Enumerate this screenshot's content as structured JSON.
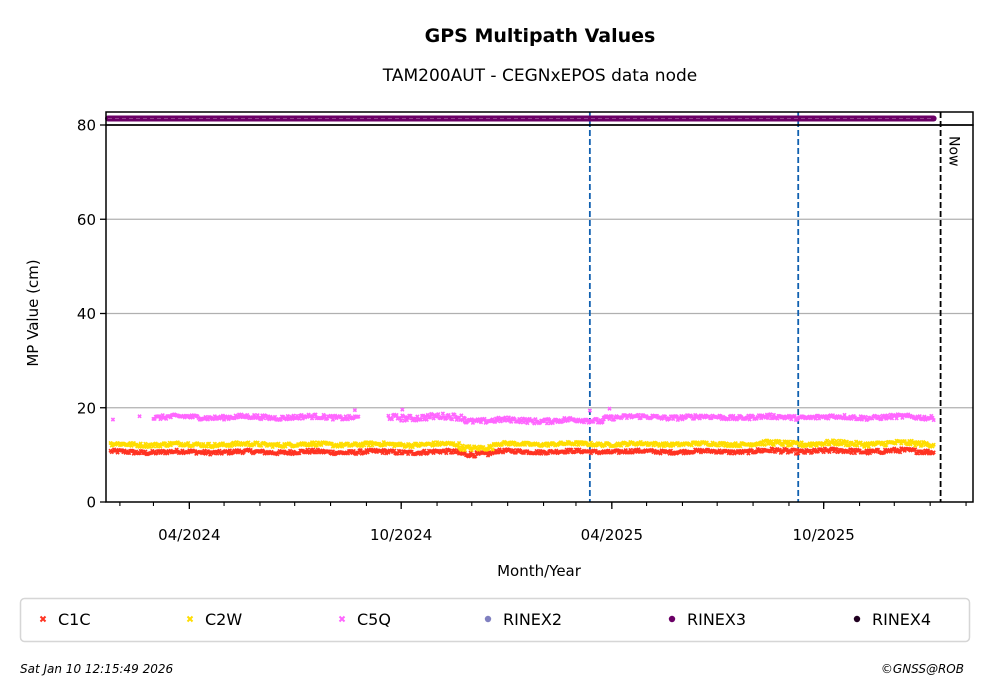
{
  "chart_data": {
    "type": "scatter",
    "title": "GPS Multipath Values",
    "subtitle": "TAM200AUT - CEGNxEPOS data node",
    "xlabel": "Month/Year",
    "ylabel": "MP Value (cm)",
    "ylim": [
      0,
      80
    ],
    "xlim": [
      "2024-01-20",
      "2026-02-07"
    ],
    "yticks": [
      "0",
      "20",
      "40",
      "60",
      "80"
    ],
    "xticks": [
      {
        "date": "2024-04-01",
        "label": "04/2024"
      },
      {
        "date": "2024-10-01",
        "label": "10/2024"
      },
      {
        "date": "2025-04-01",
        "label": "04/2025"
      },
      {
        "date": "2025-10-01",
        "label": "10/2025"
      }
    ],
    "grid": "y",
    "legend_position": "bottom",
    "now_label": "Now",
    "now_date": "2026-01-10",
    "event_lines": [
      "2025-03-13",
      "2025-09-09"
    ],
    "series": [
      {
        "name": "C1C",
        "color": "#ff3322",
        "marker": "x",
        "segments": [
          {
            "start": "2024-01-24",
            "end": "2024-11-20",
            "level": 10.6,
            "jitter": 0.4
          },
          {
            "start": "2024-11-20",
            "end": "2024-12-20",
            "level": 10.3,
            "jitter": 0.5
          },
          {
            "start": "2024-12-20",
            "end": "2025-08-01",
            "level": 10.7,
            "jitter": 0.35
          },
          {
            "start": "2025-08-01",
            "end": "2026-01-04",
            "level": 10.8,
            "jitter": 0.45
          }
        ]
      },
      {
        "name": "C2W",
        "color": "#ffdd00",
        "marker": "x",
        "segments": [
          {
            "start": "2024-01-24",
            "end": "2024-11-20",
            "level": 12.2,
            "jitter": 0.4
          },
          {
            "start": "2024-11-20",
            "end": "2024-12-20",
            "level": 11.6,
            "jitter": 0.5
          },
          {
            "start": "2024-12-20",
            "end": "2025-08-01",
            "level": 12.3,
            "jitter": 0.35
          },
          {
            "start": "2025-08-01",
            "end": "2026-01-04",
            "level": 12.4,
            "jitter": 0.5
          }
        ]
      },
      {
        "name": "C5Q",
        "color": "#ff66ff",
        "marker": "x",
        "segments": [
          {
            "start": "2024-03-01",
            "end": "2024-08-25",
            "level": 18.0,
            "jitter": 0.45
          },
          {
            "start": "2024-09-20",
            "end": "2024-11-25",
            "level": 18.0,
            "jitter": 0.6
          },
          {
            "start": "2024-11-25",
            "end": "2025-03-25",
            "level": 17.3,
            "jitter": 0.5
          },
          {
            "start": "2025-03-25",
            "end": "2026-01-04",
            "level": 18.0,
            "jitter": 0.45
          }
        ],
        "outliers": [
          {
            "date": "2024-01-26",
            "value": 17.5
          },
          {
            "date": "2024-02-18",
            "value": 18.2
          },
          {
            "date": "2024-08-22",
            "value": 19.5
          },
          {
            "date": "2024-10-02",
            "value": 19.6
          },
          {
            "date": "2025-03-13",
            "value": 19.4
          },
          {
            "date": "2025-03-30",
            "value": 19.8
          }
        ]
      },
      {
        "name": "RINEX2",
        "color": "#8080c0",
        "marker": "o",
        "segments": []
      },
      {
        "name": "RINEX3",
        "color": "#6b0066",
        "marker": "o",
        "segments": [
          {
            "start": "2024-01-20",
            "end": "2026-01-04",
            "level": "strip"
          }
        ]
      },
      {
        "name": "RINEX4",
        "color": "#200020",
        "marker": "o",
        "segments": []
      }
    ]
  },
  "footer": {
    "timestamp": "Sat Jan 10 12:15:49 2026",
    "copyright": "©GNSS@ROB"
  }
}
